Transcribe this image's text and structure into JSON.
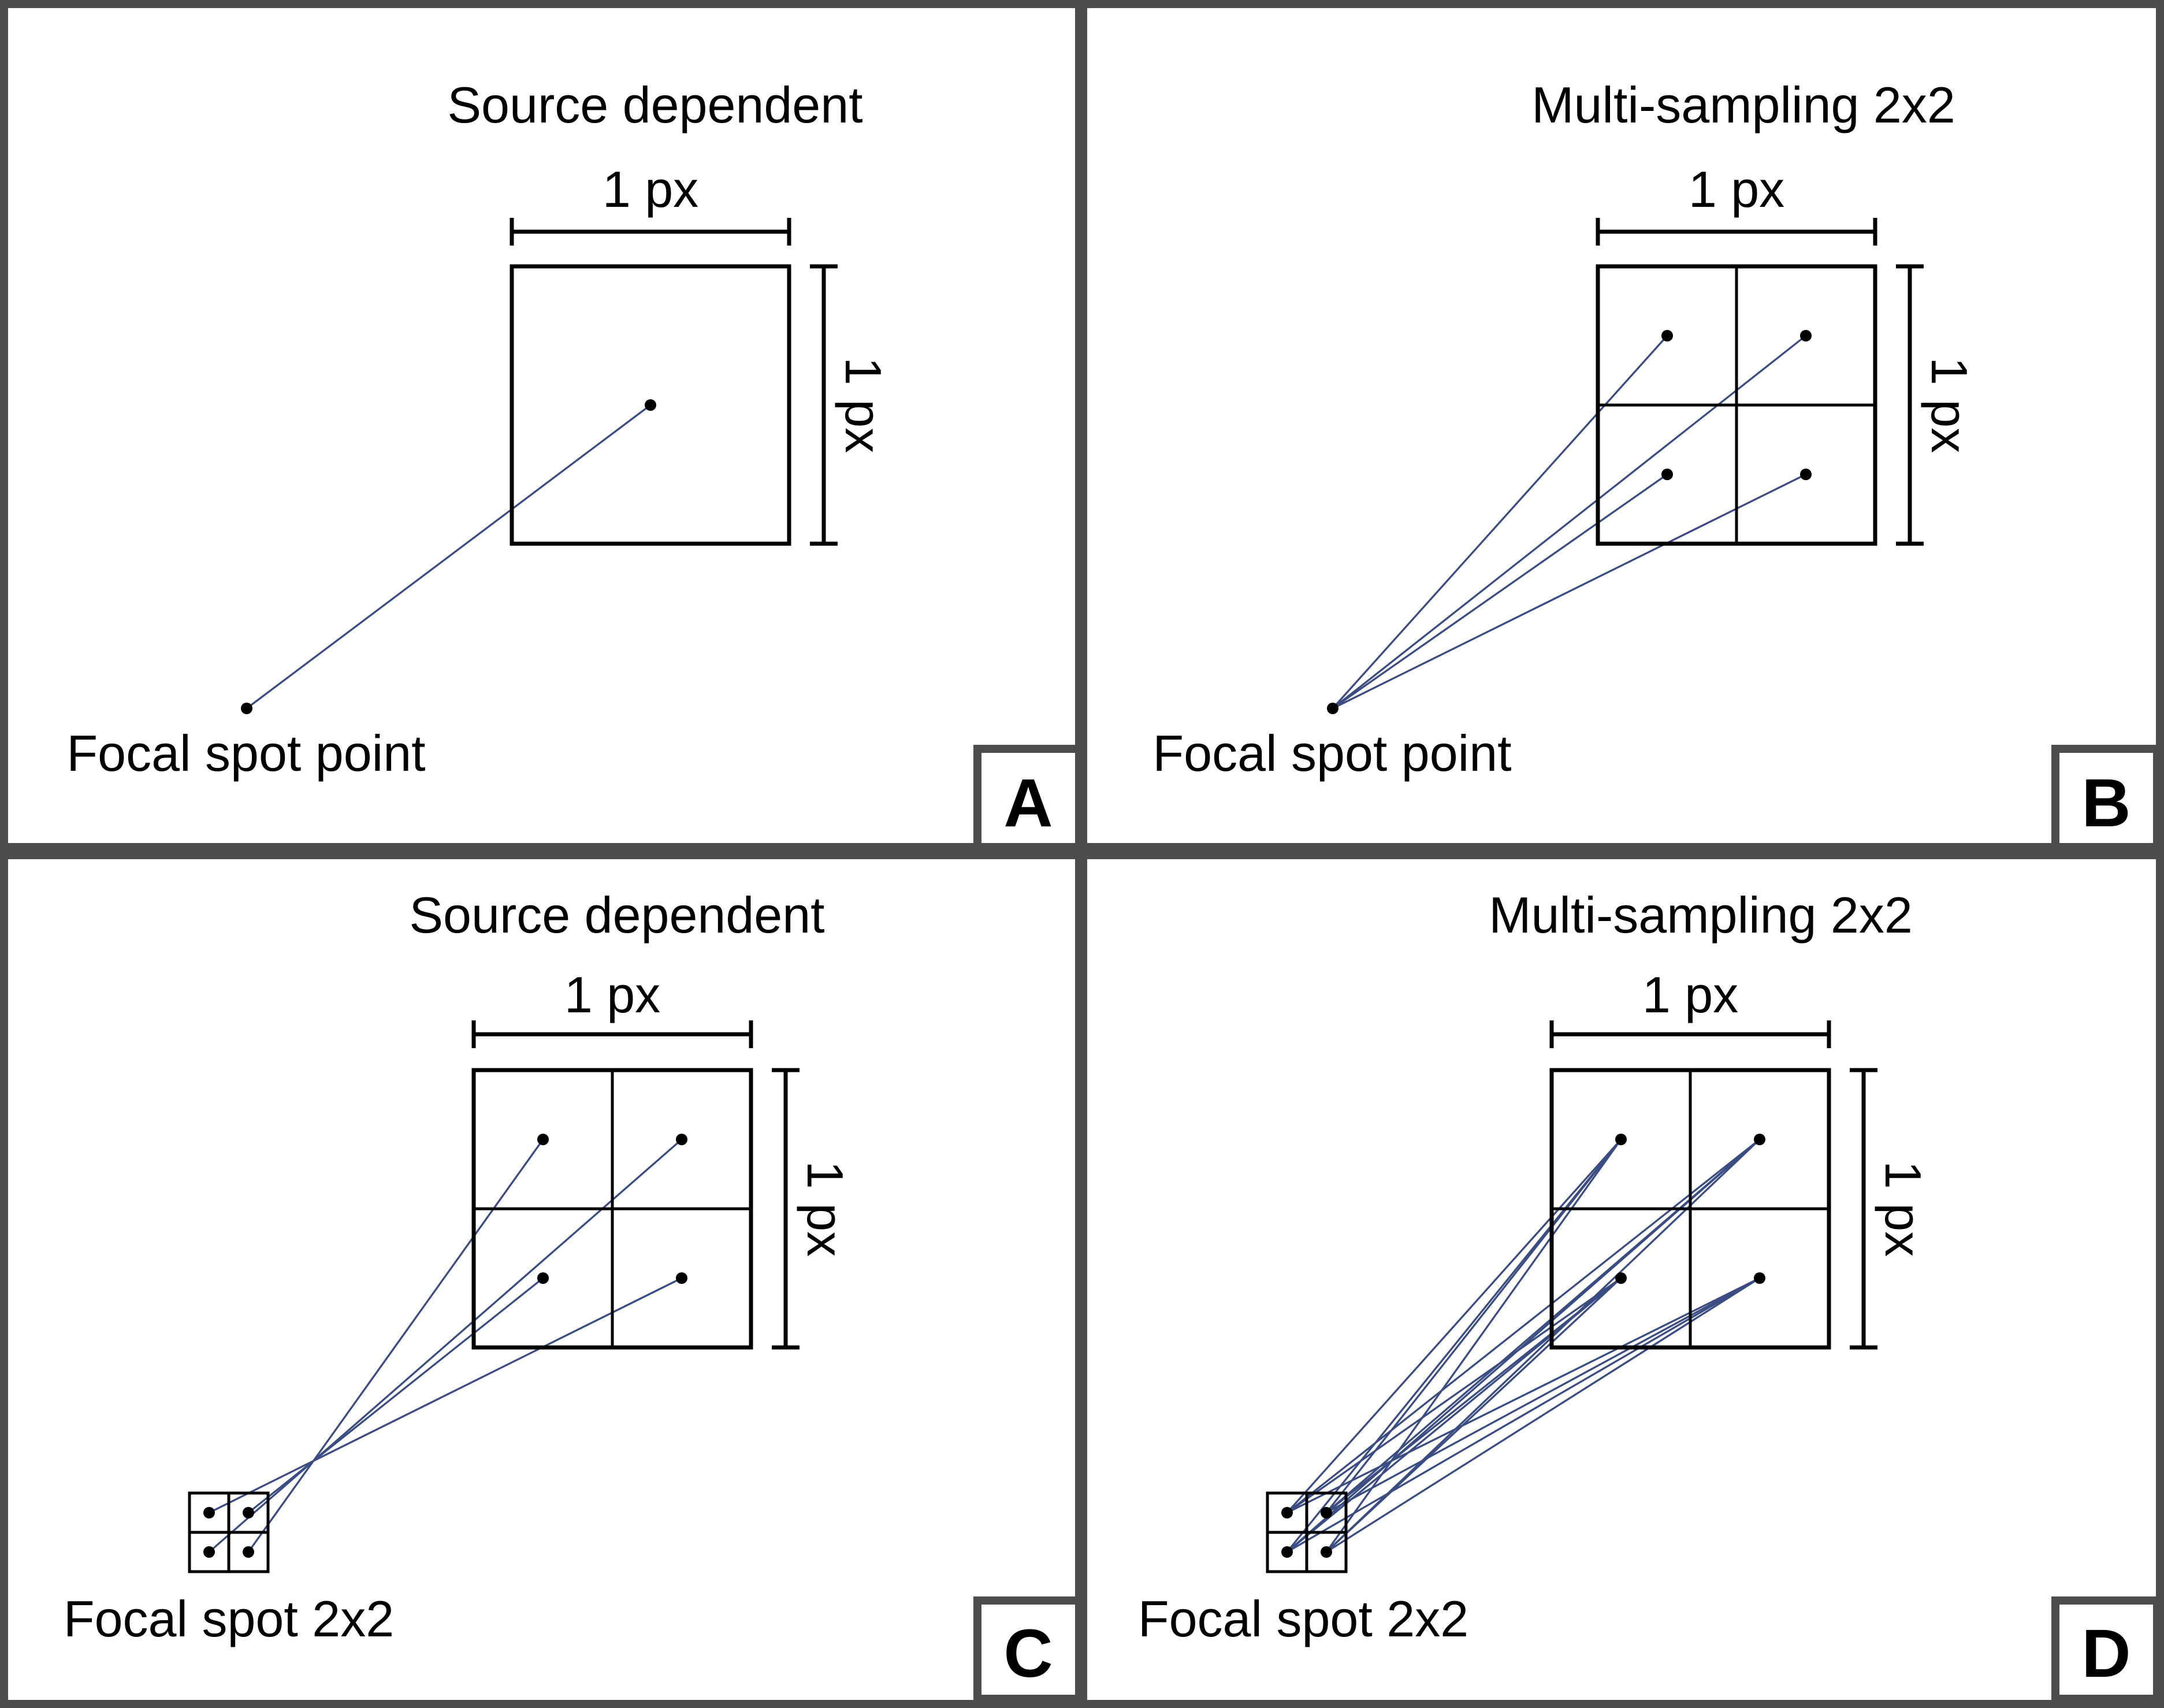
{
  "panels": [
    {
      "id": "A",
      "letter": "A",
      "title": "Source dependent",
      "width_label": "1 px",
      "height_label": "1 px",
      "source_label": "Focal spot point",
      "detector_subdivision": 1,
      "source_subdivision": 1
    },
    {
      "id": "B",
      "letter": "B",
      "title": "Multi-sampling 2x2",
      "width_label": "1 px",
      "height_label": "1 px",
      "source_label": "Focal spot point",
      "detector_subdivision": 2,
      "source_subdivision": 1
    },
    {
      "id": "C",
      "letter": "C",
      "title": "Source dependent",
      "width_label": "1 px",
      "height_label": "1 px",
      "source_label": "Focal spot 2x2",
      "detector_subdivision": 2,
      "source_subdivision": 2,
      "pairing": "one-to-one"
    },
    {
      "id": "D",
      "letter": "D",
      "title": "Multi-sampling 2x2",
      "width_label": "1 px",
      "height_label": "1 px",
      "source_label": "Focal spot 2x2",
      "detector_subdivision": 2,
      "source_subdivision": 2,
      "pairing": "all-to-all"
    }
  ],
  "colors": {
    "ray": "#3a4c82",
    "frame": "#4d4d4d",
    "ink": "#000000"
  }
}
